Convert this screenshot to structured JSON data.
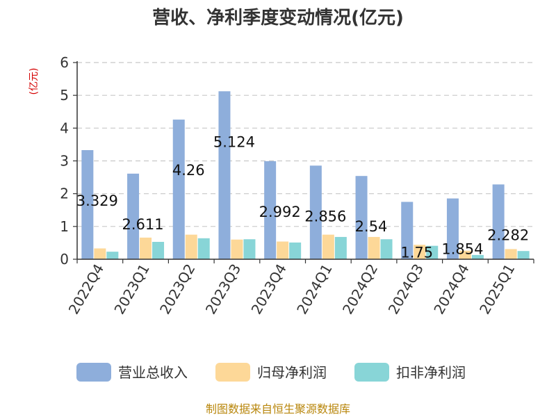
{
  "chart_data": {
    "type": "bar",
    "title": "营收、净利季度变动情况(亿元)",
    "unit_label": "(亿元)",
    "categories": [
      "2022Q4",
      "2023Q1",
      "2023Q2",
      "2023Q3",
      "2023Q4",
      "2024Q1",
      "2024Q2",
      "2024Q3",
      "2024Q4",
      "2025Q1"
    ],
    "series": [
      {
        "name": "营业总收入",
        "color": "#8eaedb",
        "values": [
          3.329,
          2.611,
          4.26,
          5.124,
          2.992,
          2.856,
          2.54,
          1.75,
          1.854,
          2.282
        ]
      },
      {
        "name": "归母净利润",
        "color": "#fdd898",
        "values": [
          0.33,
          0.66,
          0.75,
          0.6,
          0.54,
          0.75,
          0.68,
          0.44,
          0.26,
          0.31
        ]
      },
      {
        "name": "扣非净利润",
        "color": "#88d5d7",
        "values": [
          0.23,
          0.53,
          0.64,
          0.61,
          0.51,
          0.68,
          0.61,
          0.41,
          0.13,
          0.25
        ]
      }
    ],
    "data_labels": [
      "3.329",
      "2.611",
      "4.26",
      "5.124",
      "2.992",
      "2.856",
      "2.54",
      "1.75",
      "1.854",
      "2.282"
    ],
    "ylim": [
      0,
      6
    ],
    "yticks": [
      0,
      1,
      2,
      3,
      4,
      5,
      6
    ],
    "grid": true,
    "legend_position": "bottom"
  },
  "source": "制图数据来自恒生聚源数据库"
}
